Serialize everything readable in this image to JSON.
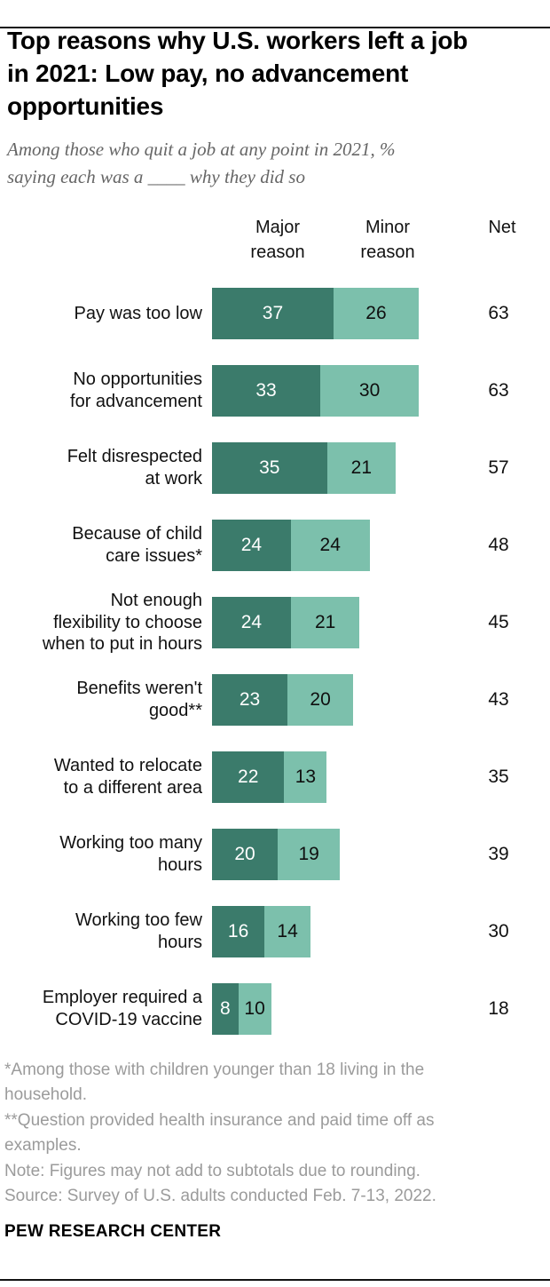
{
  "header": {
    "title": "Top reasons why U.S. workers left a job\nin 2021: Low pay, no advancement\nopportunities",
    "subtitle": "Among those who quit a job at any point in 2021, %\nsaying each was a ____ why they did so"
  },
  "chart_data": {
    "type": "bar",
    "orientation": "horizontal",
    "stacked": true,
    "unit": "%",
    "columns": {
      "major": "Major reason",
      "minor": "Minor reason",
      "net": "Net"
    },
    "series": [
      {
        "name": "Major reason",
        "color": "#3b7b6b"
      },
      {
        "name": "Minor reason",
        "color": "#7cc0ac"
      }
    ],
    "xlim": [
      0,
      63
    ],
    "rows": [
      {
        "label": "Pay was too low",
        "major": 37,
        "minor": 26,
        "net": 63
      },
      {
        "label": "No opportunities\nfor advancement",
        "major": 33,
        "minor": 30,
        "net": 63
      },
      {
        "label": "Felt disrespected\nat work",
        "major": 35,
        "minor": 21,
        "net": 57
      },
      {
        "label": "Because of child\ncare issues*",
        "major": 24,
        "minor": 24,
        "net": 48
      },
      {
        "label": "Not enough\nflexibility to choose\nwhen to put in hours",
        "major": 24,
        "minor": 21,
        "net": 45
      },
      {
        "label": "Benefits weren't\ngood**",
        "major": 23,
        "minor": 20,
        "net": 43
      },
      {
        "label": "Wanted to relocate\nto a different area",
        "major": 22,
        "minor": 13,
        "net": 35
      },
      {
        "label": "Working too many\nhours",
        "major": 20,
        "minor": 19,
        "net": 39
      },
      {
        "label": "Working too few\nhours",
        "major": 16,
        "minor": 14,
        "net": 30
      },
      {
        "label": "Employer required a\nCOVID-19 vaccine",
        "major": 8,
        "minor": 10,
        "net": 18
      }
    ]
  },
  "footnotes": [
    "*Among those with children younger than 18 living in the\nhousehold.",
    "**Question provided health insurance and paid time off as\nexamples.",
    "Note: Figures may not add to subtotals due to rounding.",
    "Source: Survey of U.S. adults conducted Feb. 7-13, 2022."
  ],
  "branding": "PEW RESEARCH CENTER"
}
